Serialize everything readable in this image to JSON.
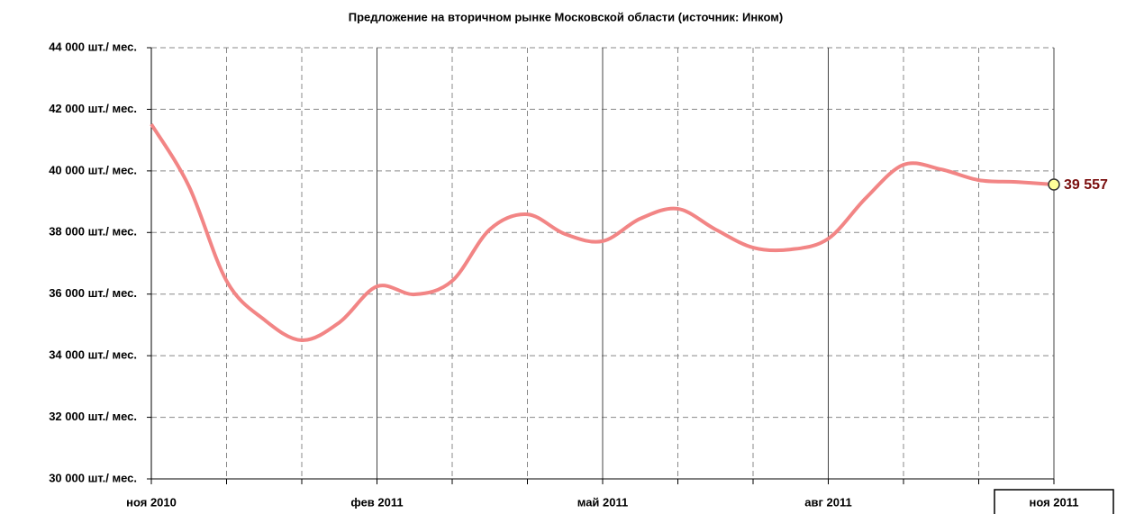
{
  "chart_data": {
    "type": "line",
    "title": "Предложение на вторичном рынке Московской области (источник: Инком)",
    "categories": [
      "ноя 2010",
      null,
      null,
      null,
      null,
      null,
      "фев 2011",
      null,
      null,
      null,
      null,
      null,
      "май 2011",
      null,
      null,
      null,
      null,
      null,
      "авг 2011",
      null,
      null,
      null,
      null,
      null,
      "ноя 2011"
    ],
    "series": [
      {
        "name": null,
        "color": "#f28585",
        "values": [
          41515,
          39500,
          36430,
          35170,
          34500,
          35080,
          36250,
          35990,
          36430,
          38100,
          38590,
          37950,
          37720,
          38450,
          38770,
          38100,
          37510,
          37450,
          37800,
          39120,
          40200,
          40050,
          39700,
          39640,
          39557
        ],
        "value_labels": [
          null,
          null,
          null,
          null,
          null,
          null,
          null,
          null,
          null,
          null,
          null,
          null,
          null,
          null,
          null,
          null,
          null,
          null,
          null,
          null,
          null,
          null,
          null,
          null,
          "39 557"
        ]
      }
    ],
    "ylim": [
      30000,
      44000
    ],
    "yticks": [
      {
        "value": 30000,
        "label": "30 000 шт./ мес."
      },
      {
        "value": 32000,
        "label": "32 000 шт./ мес."
      },
      {
        "value": 34000,
        "label": "34 000 шт./ мес."
      },
      {
        "value": 36000,
        "label": "36 000 шт./ мес."
      },
      {
        "value": 38000,
        "label": "38 000 шт./ мес."
      },
      {
        "value": 40000,
        "label": "40 000 шт./ мес."
      },
      {
        "value": 42000,
        "label": "42 000 шт./ мес."
      },
      {
        "value": 44000,
        "label": "44 000 шт./ мес."
      }
    ],
    "grid": true
  }
}
